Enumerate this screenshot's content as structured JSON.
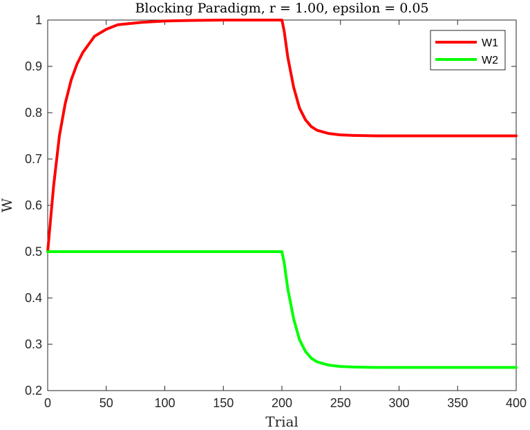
{
  "chart_data": {
    "type": "line",
    "title": "Blocking Paradigm, r = 1.00, epsilon = 0.05",
    "xlabel": "Trial",
    "ylabel": "W",
    "xlim": [
      0,
      400
    ],
    "ylim": [
      0.2,
      1.0
    ],
    "xticks": [
      0,
      50,
      100,
      150,
      200,
      250,
      300,
      350,
      400
    ],
    "yticks": [
      0.2,
      0.3,
      0.4,
      0.5,
      0.6,
      0.7,
      0.8,
      0.9,
      1.0
    ],
    "xtick_labels": [
      "0",
      "50",
      "100",
      "150",
      "200",
      "250",
      "300",
      "350",
      "400"
    ],
    "ytick_labels": [
      "0.2",
      "0.3",
      "0.4",
      "0.5",
      "0.6",
      "0.7",
      "0.8",
      "0.9",
      "1"
    ],
    "grid": false,
    "legend_position": "top-right",
    "series": [
      {
        "name": "W1",
        "color": "#ff0000",
        "x": [
          0,
          5,
          10,
          15,
          20,
          25,
          30,
          40,
          50,
          60,
          80,
          100,
          120,
          150,
          200,
          202,
          205,
          210,
          215,
          220,
          225,
          230,
          240,
          250,
          260,
          280,
          300,
          350,
          400
        ],
        "y": [
          0.5,
          0.64,
          0.75,
          0.82,
          0.87,
          0.905,
          0.93,
          0.965,
          0.98,
          0.99,
          0.995,
          0.998,
          0.999,
          1.0,
          1.0,
          0.975,
          0.92,
          0.855,
          0.81,
          0.785,
          0.77,
          0.762,
          0.755,
          0.752,
          0.751,
          0.75,
          0.75,
          0.75,
          0.75
        ]
      },
      {
        "name": "W2",
        "color": "#00ff00",
        "x": [
          0,
          50,
          100,
          150,
          200,
          202,
          205,
          210,
          215,
          220,
          225,
          230,
          240,
          250,
          260,
          280,
          300,
          350,
          400
        ],
        "y": [
          0.5,
          0.5,
          0.5,
          0.5,
          0.5,
          0.475,
          0.42,
          0.355,
          0.31,
          0.285,
          0.27,
          0.262,
          0.255,
          0.252,
          0.251,
          0.25,
          0.25,
          0.25,
          0.25
        ]
      }
    ]
  }
}
